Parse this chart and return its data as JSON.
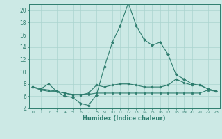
{
  "xlabel": "Humidex (Indice chaleur)",
  "background_color": "#cce9e5",
  "line_color": "#2e7d6e",
  "grid_color": "#aad4cf",
  "xlim": [
    -0.5,
    23.5
  ],
  "ylim": [
    4,
    21
  ],
  "yticks": [
    4,
    6,
    8,
    10,
    12,
    14,
    16,
    18,
    20
  ],
  "xticks": [
    0,
    1,
    2,
    3,
    4,
    5,
    6,
    7,
    8,
    9,
    10,
    11,
    12,
    13,
    14,
    15,
    16,
    17,
    18,
    19,
    20,
    21,
    22,
    23
  ],
  "series": [
    [
      7.5,
      7.2,
      8.0,
      6.8,
      6.0,
      5.8,
      4.8,
      4.5,
      6.2,
      10.8,
      14.8,
      17.5,
      21.2,
      17.5,
      15.2,
      14.3,
      14.8,
      12.8,
      9.5,
      8.8,
      8.0,
      7.8,
      7.2,
      6.8
    ],
    [
      7.5,
      7.2,
      7.0,
      6.8,
      6.5,
      6.2,
      6.2,
      6.5,
      7.8,
      7.5,
      7.8,
      8.0,
      8.0,
      7.8,
      7.5,
      7.5,
      7.5,
      7.8,
      8.8,
      8.2,
      7.8,
      7.8,
      7.2,
      6.8
    ],
    [
      7.5,
      7.0,
      6.8,
      6.8,
      6.5,
      6.3,
      6.3,
      6.3,
      6.5,
      6.5,
      6.5,
      6.5,
      6.5,
      6.5,
      6.5,
      6.5,
      6.5,
      6.5,
      6.5,
      6.5,
      6.5,
      6.5,
      7.0,
      6.8
    ]
  ]
}
